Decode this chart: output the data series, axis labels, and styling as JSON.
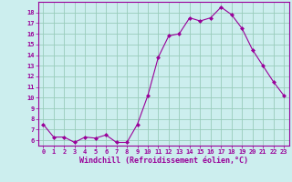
{
  "x": [
    0,
    1,
    2,
    3,
    4,
    5,
    6,
    7,
    8,
    9,
    10,
    11,
    12,
    13,
    14,
    15,
    16,
    17,
    18,
    19,
    20,
    21,
    22,
    23
  ],
  "y": [
    7.5,
    6.3,
    6.3,
    5.8,
    6.3,
    6.2,
    6.5,
    5.8,
    5.8,
    7.5,
    10.2,
    13.8,
    15.8,
    16.0,
    17.5,
    17.2,
    17.5,
    18.5,
    17.8,
    16.5,
    14.5,
    13.0,
    11.5,
    10.2
  ],
  "xlim": [
    -0.5,
    23.5
  ],
  "ylim": [
    5.5,
    19.0
  ],
  "yticks": [
    6,
    7,
    8,
    9,
    10,
    11,
    12,
    13,
    14,
    15,
    16,
    17,
    18
  ],
  "xticks": [
    0,
    1,
    2,
    3,
    4,
    5,
    6,
    7,
    8,
    9,
    10,
    11,
    12,
    13,
    14,
    15,
    16,
    17,
    18,
    19,
    20,
    21,
    22,
    23
  ],
  "xlabel": "Windchill (Refroidissement éolien,°C)",
  "line_color": "#990099",
  "marker": "D",
  "marker_size": 2,
  "bg_color": "#cceeee",
  "grid_color": "#99ccbb",
  "tick_fontsize": 5,
  "xlabel_fontsize": 6
}
